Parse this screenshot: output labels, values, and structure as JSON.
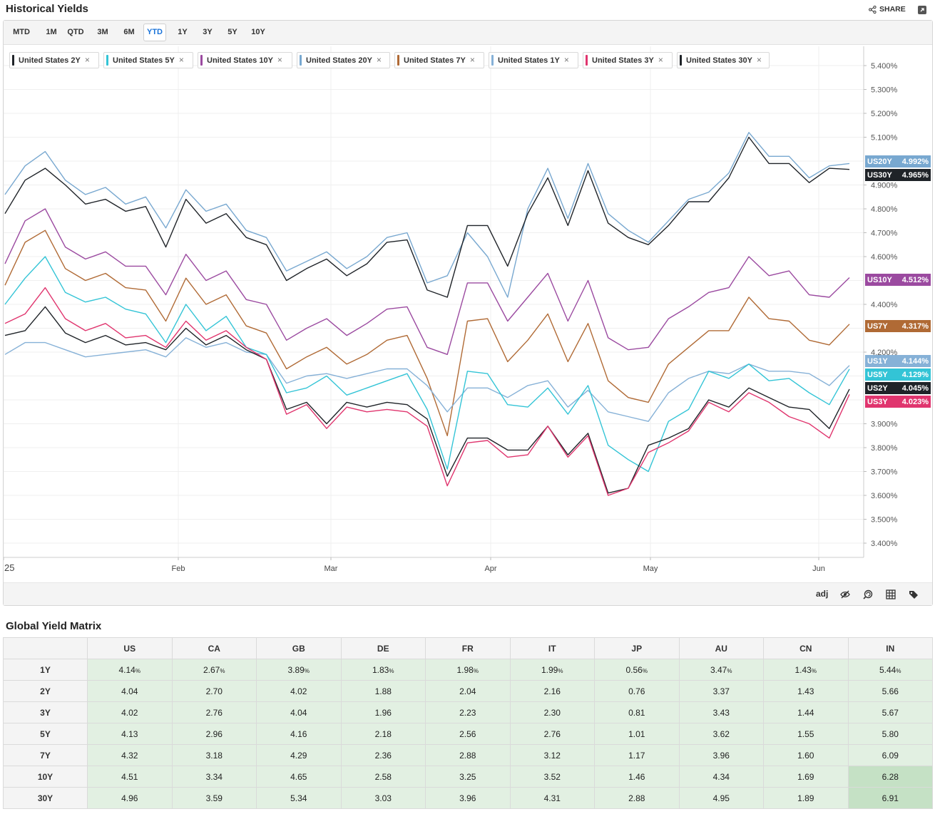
{
  "header": {
    "title": "Historical Yields",
    "share_label": "SHARE"
  },
  "range_buttons": [
    "MTD",
    "1M",
    "QTD",
    "3M",
    "6M",
    "YTD",
    "1Y",
    "3Y",
    "5Y",
    "10Y"
  ],
  "range_active": "YTD",
  "legend": [
    {
      "label": "United States 2Y",
      "color": "#1f2328"
    },
    {
      "label": "United States 5Y",
      "color": "#33c4d6"
    },
    {
      "label": "United States 10Y",
      "color": "#9b4aa0"
    },
    {
      "label": "United States 20Y",
      "color": "#78a8d0"
    },
    {
      "label": "United States 7Y",
      "color": "#b06a35"
    },
    {
      "label": "United States 1Y",
      "color": "#86b1d7"
    },
    {
      "label": "United States 3Y",
      "color": "#e0356e"
    },
    {
      "label": "United States 30Y",
      "color": "#1f2328"
    }
  ],
  "toolbar": {
    "adj_label": "adj"
  },
  "chart_data": {
    "type": "line",
    "x_axis_labels": [
      "25",
      "Feb",
      "Mar",
      "Apr",
      "May",
      "Jun"
    ],
    "y_axis_labels": [
      "5.400%",
      "5.300%",
      "5.200%",
      "5.100%",
      "4.900%",
      "4.800%",
      "4.700%",
      "4.600%",
      "4.400%",
      "4.200%",
      "3.900%",
      "3.800%",
      "3.700%",
      "3.600%",
      "3.500%",
      "3.400%"
    ],
    "ylim": [
      3.35,
      5.45
    ],
    "grid": true,
    "end_tags": [
      {
        "tag": "US20Y",
        "value": "4.992%",
        "color": "#78a8d0"
      },
      {
        "tag": "US30Y",
        "value": "4.965%",
        "color": "#1f2328"
      },
      {
        "tag": "US10Y",
        "value": "4.512%",
        "color": "#9b4aa0"
      },
      {
        "tag": "US7Y",
        "value": "4.317%",
        "color": "#b06a35"
      },
      {
        "tag": "US1Y",
        "value": "4.144%",
        "color": "#86b1d7"
      },
      {
        "tag": "US5Y",
        "value": "4.129%",
        "color": "#33c4d6"
      },
      {
        "tag": "US2Y",
        "value": "4.045%",
        "color": "#1f2328"
      },
      {
        "tag": "US3Y",
        "value": "4.023%",
        "color": "#e0356e"
      }
    ],
    "series": [
      {
        "name": "United States 20Y",
        "color": "#78a8d0",
        "values": [
          4.86,
          4.98,
          5.04,
          4.92,
          4.86,
          4.89,
          4.82,
          4.85,
          4.72,
          4.88,
          4.79,
          4.82,
          4.71,
          4.68,
          4.54,
          4.58,
          4.62,
          4.55,
          4.6,
          4.68,
          4.7,
          4.49,
          4.52,
          4.7,
          4.6,
          4.43,
          4.8,
          4.97,
          4.76,
          4.99,
          4.78,
          4.71,
          4.66,
          4.75,
          4.84,
          4.87,
          4.95,
          5.12,
          5.02,
          5.02,
          4.93,
          4.98,
          4.99
        ]
      },
      {
        "name": "United States 30Y",
        "color": "#1f2328",
        "values": [
          4.78,
          4.92,
          4.97,
          4.9,
          4.82,
          4.84,
          4.79,
          4.81,
          4.64,
          4.84,
          4.74,
          4.78,
          4.68,
          4.65,
          4.5,
          4.55,
          4.59,
          4.52,
          4.57,
          4.66,
          4.67,
          4.46,
          4.43,
          4.73,
          4.73,
          4.56,
          4.78,
          4.93,
          4.73,
          4.96,
          4.74,
          4.68,
          4.65,
          4.73,
          4.83,
          4.83,
          4.93,
          5.1,
          4.99,
          4.99,
          4.91,
          4.97,
          4.965
        ]
      },
      {
        "name": "United States 10Y",
        "color": "#9b4aa0",
        "values": [
          4.57,
          4.75,
          4.8,
          4.64,
          4.59,
          4.62,
          4.56,
          4.56,
          4.44,
          4.61,
          4.5,
          4.54,
          4.42,
          4.4,
          4.25,
          4.3,
          4.34,
          4.27,
          4.32,
          4.38,
          4.39,
          4.22,
          4.19,
          4.49,
          4.49,
          4.33,
          4.43,
          4.53,
          4.33,
          4.5,
          4.26,
          4.21,
          4.22,
          4.34,
          4.39,
          4.45,
          4.47,
          4.6,
          4.52,
          4.54,
          4.44,
          4.43,
          4.512
        ]
      },
      {
        "name": "United States 7Y",
        "color": "#b06a35",
        "values": [
          4.48,
          4.66,
          4.71,
          4.55,
          4.5,
          4.53,
          4.47,
          4.46,
          4.33,
          4.51,
          4.4,
          4.44,
          4.31,
          4.28,
          4.13,
          4.18,
          4.22,
          4.15,
          4.19,
          4.25,
          4.27,
          4.09,
          3.85,
          4.33,
          4.34,
          4.16,
          4.25,
          4.36,
          4.16,
          4.32,
          4.08,
          4.01,
          3.99,
          4.15,
          4.22,
          4.29,
          4.29,
          4.43,
          4.34,
          4.33,
          4.25,
          4.23,
          4.317
        ]
      },
      {
        "name": "United States 1Y",
        "color": "#86b1d7",
        "values": [
          4.19,
          4.24,
          4.24,
          4.21,
          4.18,
          4.19,
          4.2,
          4.21,
          4.18,
          4.26,
          4.22,
          4.24,
          4.2,
          4.19,
          4.07,
          4.1,
          4.11,
          4.09,
          4.11,
          4.13,
          4.13,
          4.06,
          3.95,
          4.05,
          4.05,
          4.01,
          4.06,
          4.08,
          3.97,
          4.04,
          3.95,
          3.93,
          3.91,
          4.03,
          4.09,
          4.12,
          4.11,
          4.15,
          4.12,
          4.12,
          4.11,
          4.06,
          4.144
        ]
      },
      {
        "name": "United States 5Y",
        "color": "#33c4d6",
        "values": [
          4.4,
          4.51,
          4.6,
          4.45,
          4.41,
          4.43,
          4.38,
          4.36,
          4.24,
          4.4,
          4.29,
          4.35,
          4.22,
          4.19,
          4.03,
          4.05,
          4.1,
          4.02,
          4.05,
          4.08,
          4.11,
          3.96,
          3.71,
          4.12,
          4.11,
          3.98,
          3.97,
          4.05,
          3.94,
          4.06,
          3.81,
          3.75,
          3.7,
          3.91,
          3.96,
          4.12,
          4.09,
          4.15,
          4.08,
          4.09,
          4.03,
          3.98,
          4.129
        ]
      },
      {
        "name": "United States 2Y",
        "color": "#1f2328",
        "values": [
          4.27,
          4.29,
          4.39,
          4.28,
          4.24,
          4.27,
          4.23,
          4.24,
          4.21,
          4.3,
          4.23,
          4.27,
          4.21,
          4.17,
          3.96,
          3.99,
          3.9,
          3.99,
          3.97,
          3.99,
          3.98,
          3.92,
          3.68,
          3.84,
          3.84,
          3.79,
          3.79,
          3.89,
          3.77,
          3.86,
          3.61,
          3.63,
          3.81,
          3.84,
          3.88,
          4.0,
          3.97,
          4.05,
          4.01,
          3.97,
          3.96,
          3.88,
          4.045
        ]
      },
      {
        "name": "United States 3Y",
        "color": "#e0356e",
        "values": [
          4.32,
          4.36,
          4.47,
          4.34,
          4.29,
          4.32,
          4.26,
          4.27,
          4.22,
          4.33,
          4.25,
          4.29,
          4.22,
          4.17,
          3.94,
          3.98,
          3.88,
          3.97,
          3.95,
          3.96,
          3.95,
          3.89,
          3.64,
          3.82,
          3.83,
          3.76,
          3.77,
          3.89,
          3.76,
          3.85,
          3.6,
          3.63,
          3.78,
          3.82,
          3.87,
          3.99,
          3.95,
          4.03,
          3.99,
          3.93,
          3.9,
          3.84,
          4.023
        ]
      }
    ]
  },
  "matrix": {
    "title": "Global Yield Matrix",
    "columns": [
      "US",
      "CA",
      "GB",
      "DE",
      "FR",
      "IT",
      "JP",
      "AU",
      "CN",
      "IN"
    ],
    "rows": [
      {
        "label": "1Y",
        "values": [
          "4.14",
          "2.67",
          "3.89",
          "1.83",
          "1.98",
          "1.99",
          "0.56",
          "3.47",
          "1.43",
          "5.44"
        ],
        "pct_suffix": "%"
      },
      {
        "label": "2Y",
        "values": [
          "4.04",
          "2.70",
          "4.02",
          "1.88",
          "2.04",
          "2.16",
          "0.76",
          "3.37",
          "1.43",
          "5.66"
        ]
      },
      {
        "label": "3Y",
        "values": [
          "4.02",
          "2.76",
          "4.04",
          "1.96",
          "2.23",
          "2.30",
          "0.81",
          "3.43",
          "1.44",
          "5.67"
        ]
      },
      {
        "label": "5Y",
        "values": [
          "4.13",
          "2.96",
          "4.16",
          "2.18",
          "2.56",
          "2.76",
          "1.01",
          "3.62",
          "1.55",
          "5.80"
        ]
      },
      {
        "label": "7Y",
        "values": [
          "4.32",
          "3.18",
          "4.29",
          "2.36",
          "2.88",
          "3.12",
          "1.17",
          "3.96",
          "1.60",
          "6.09"
        ]
      },
      {
        "label": "10Y",
        "values": [
          "4.51",
          "3.34",
          "4.65",
          "2.58",
          "3.25",
          "3.52",
          "1.46",
          "4.34",
          "1.69",
          "6.28"
        ]
      },
      {
        "label": "30Y",
        "values": [
          "4.96",
          "3.59",
          "5.34",
          "3.03",
          "3.96",
          "4.31",
          "2.88",
          "4.95",
          "1.89",
          "6.91"
        ]
      }
    ]
  }
}
